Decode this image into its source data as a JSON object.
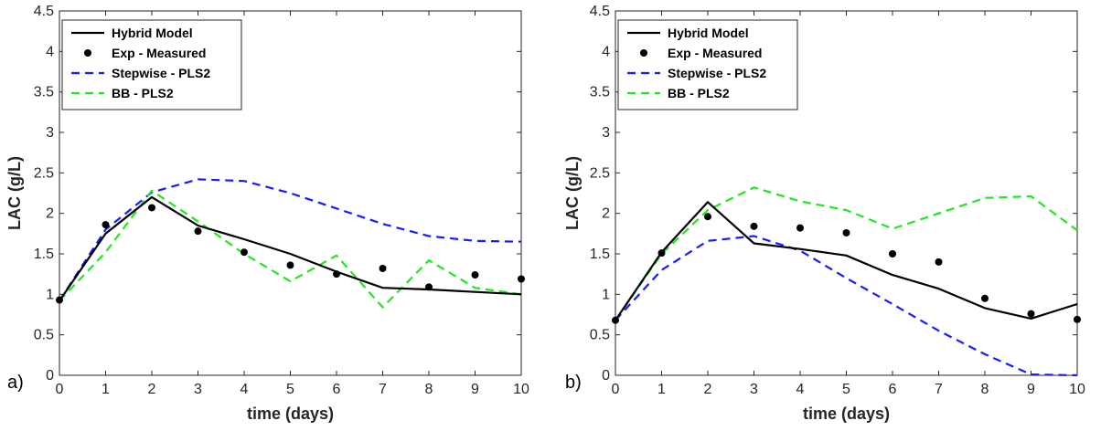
{
  "chart_data": [
    {
      "panel_label": "a)",
      "type": "line",
      "xlabel": "time (days)",
      "ylabel": "LAC (g/L)",
      "xlim": [
        0,
        10
      ],
      "ylim": [
        0,
        4.5
      ],
      "xticks": [
        "0",
        "1",
        "2",
        "3",
        "4",
        "5",
        "6",
        "7",
        "8",
        "9",
        "10"
      ],
      "yticks": [
        "0",
        "0.5",
        "1",
        "1.5",
        "2",
        "2.5",
        "3",
        "3.5",
        "4",
        "4.5"
      ],
      "legend_position": "top-left",
      "series": [
        {
          "name": "Hybrid Model",
          "style": "solid",
          "color": "#000000",
          "x": [
            0,
            1,
            2,
            3,
            4,
            5,
            6,
            7,
            8,
            9,
            10
          ],
          "y": [
            0.92,
            1.75,
            2.2,
            1.85,
            1.68,
            1.5,
            1.28,
            1.08,
            1.06,
            1.03,
            1.0
          ]
        },
        {
          "name": "Exp - Measured",
          "style": "markers",
          "color": "#000000",
          "x": [
            0,
            1,
            2,
            3,
            4,
            5,
            6,
            7,
            8,
            9,
            10
          ],
          "y": [
            0.93,
            1.86,
            2.07,
            1.78,
            1.52,
            1.36,
            1.25,
            1.32,
            1.09,
            1.24,
            1.19
          ]
        },
        {
          "name": "Stepwise - PLS2",
          "style": "dashed",
          "color": "#1a1aff",
          "x": [
            0,
            1,
            2,
            3,
            4,
            5,
            6,
            7,
            8,
            9,
            10
          ],
          "y": [
            0.92,
            1.8,
            2.26,
            2.42,
            2.4,
            2.25,
            2.06,
            1.87,
            1.72,
            1.66,
            1.65
          ]
        },
        {
          "name": "BB - PLS2",
          "style": "dashed",
          "color": "#22e622",
          "x": [
            0,
            1,
            2,
            3,
            4,
            5,
            6,
            7,
            8,
            9,
            10
          ],
          "y": [
            0.92,
            1.52,
            2.28,
            1.9,
            1.5,
            1.16,
            1.48,
            0.84,
            1.42,
            1.08,
            1.0
          ]
        }
      ]
    },
    {
      "panel_label": "b)",
      "type": "line",
      "xlabel": "time (days)",
      "ylabel": "LAC (g/L)",
      "xlim": [
        0,
        10
      ],
      "ylim": [
        0,
        4.5
      ],
      "xticks": [
        "0",
        "1",
        "2",
        "3",
        "4",
        "5",
        "6",
        "7",
        "8",
        "9",
        "10"
      ],
      "yticks": [
        "0",
        "0.5",
        "1",
        "1.5",
        "2",
        "2.5",
        "3",
        "3.5",
        "4",
        "4.5"
      ],
      "legend_position": "top-left",
      "series": [
        {
          "name": "Hybrid Model",
          "style": "solid",
          "color": "#000000",
          "x": [
            0,
            1,
            2,
            3,
            4,
            5,
            6,
            7,
            8,
            9,
            10
          ],
          "y": [
            0.68,
            1.52,
            2.14,
            1.63,
            1.56,
            1.48,
            1.24,
            1.07,
            0.83,
            0.7,
            0.88
          ]
        },
        {
          "name": "Exp - Measured",
          "style": "markers",
          "color": "#000000",
          "x": [
            0,
            1,
            2,
            3,
            4,
            5,
            6,
            7,
            8,
            9,
            10
          ],
          "y": [
            0.68,
            1.51,
            1.96,
            1.84,
            1.82,
            1.76,
            1.5,
            1.4,
            0.95,
            0.76,
            0.69
          ]
        },
        {
          "name": "Stepwise - PLS2",
          "style": "dashed",
          "color": "#1a1aff",
          "x": [
            0,
            1,
            2,
            3,
            4,
            5,
            6,
            7,
            8,
            9,
            10
          ],
          "y": [
            0.68,
            1.3,
            1.66,
            1.72,
            1.54,
            1.2,
            0.88,
            0.55,
            0.26,
            0.01,
            0.0
          ]
        },
        {
          "name": "BB - PLS2",
          "style": "dashed",
          "color": "#22e622",
          "x": [
            0,
            1,
            2,
            3,
            4,
            5,
            6,
            7,
            8,
            9,
            10
          ],
          "y": [
            0.68,
            1.5,
            2.04,
            2.32,
            2.15,
            2.04,
            1.81,
            2.0,
            2.19,
            2.21,
            1.79
          ]
        }
      ]
    }
  ]
}
